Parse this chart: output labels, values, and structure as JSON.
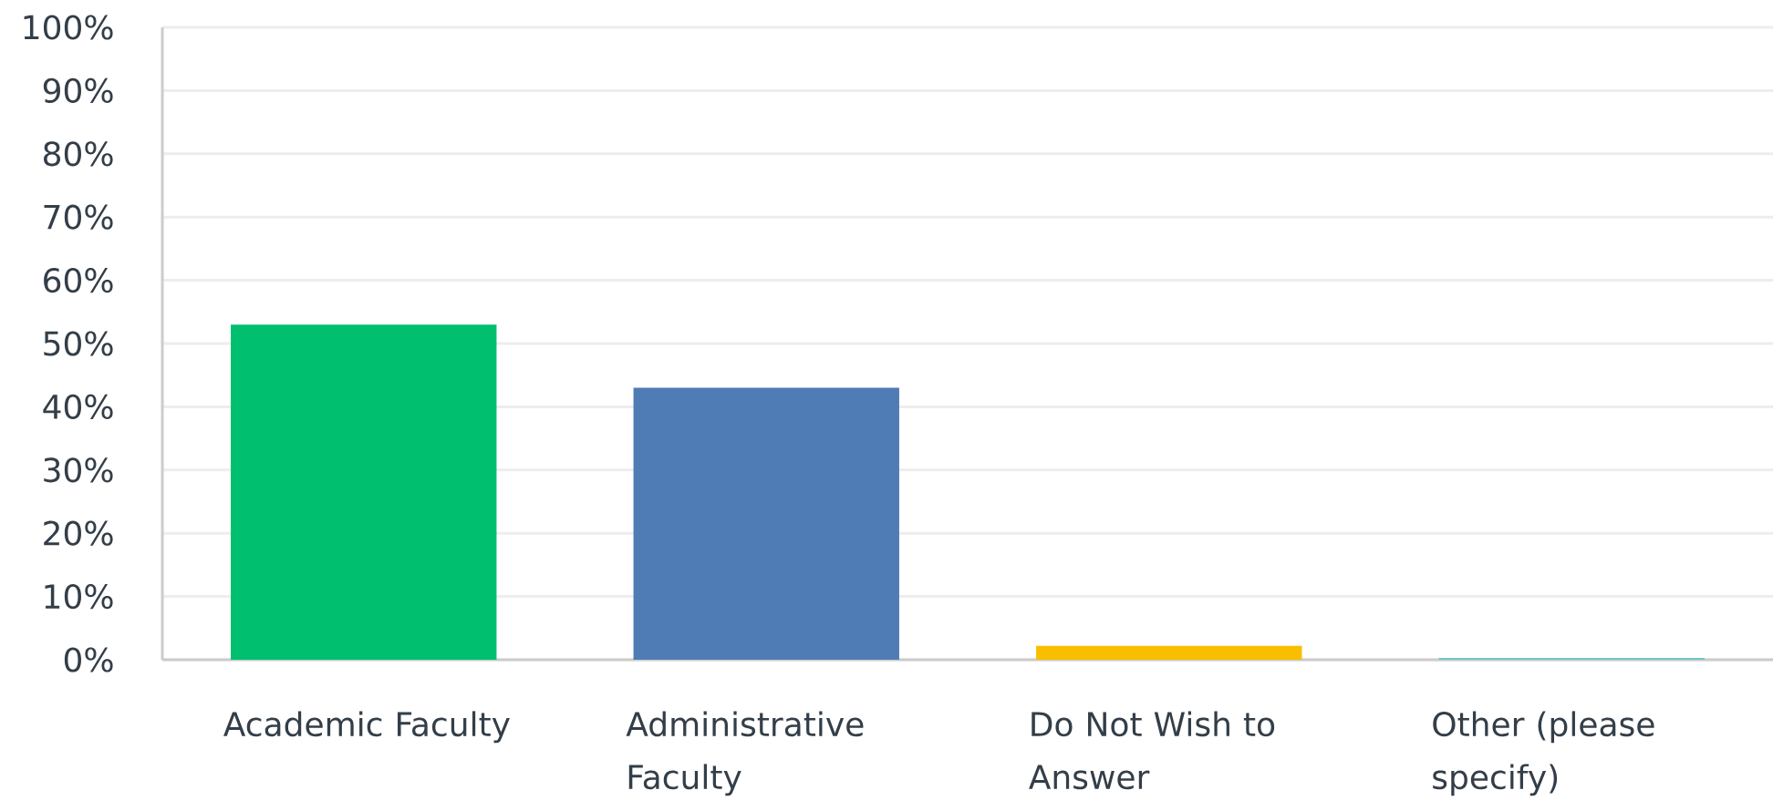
{
  "chart_data": {
    "type": "bar",
    "categories": [
      "Academic Faculty",
      "Administrative Faculty",
      "Do Not Wish to Answer",
      "Other (please specify)"
    ],
    "values": [
      53,
      43,
      2.2,
      0.3
    ],
    "colors": [
      "#00bf6f",
      "#507cb6",
      "#f9be00",
      "#6bc8cd"
    ],
    "ylim": [
      0,
      100
    ],
    "yticks": [
      {
        "value": 0,
        "label": "0%"
      },
      {
        "value": 10,
        "label": "10%"
      },
      {
        "value": 20,
        "label": "20%"
      },
      {
        "value": 30,
        "label": "30%"
      },
      {
        "value": 40,
        "label": "40%"
      },
      {
        "value": 50,
        "label": "50%"
      },
      {
        "value": 60,
        "label": "60%"
      },
      {
        "value": 70,
        "label": "70%"
      },
      {
        "value": 80,
        "label": "80%"
      },
      {
        "value": 90,
        "label": "90%"
      },
      {
        "value": 100,
        "label": "100%"
      }
    ],
    "grid": "y"
  }
}
